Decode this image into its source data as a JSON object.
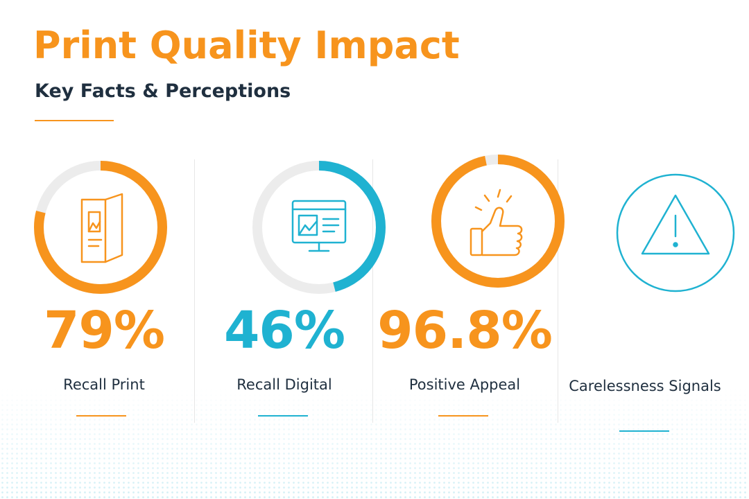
{
  "title": "Print Quality Impact",
  "subtitle": "Key Facts & Perceptions",
  "colors": {
    "orange": "#f7941d",
    "teal": "#1fb2d1",
    "track": "#ececec",
    "text": "#1f2f3f"
  },
  "chart_data": {
    "type": "donut",
    "items": [
      {
        "label": "Recall Print",
        "value_text": "79%",
        "value": 79,
        "color": "#f7941d",
        "icon": "brochure-icon"
      },
      {
        "label": "Recall Digital",
        "value_text": "46%",
        "value": 46,
        "color": "#1fb2d1",
        "icon": "monitor-icon"
      },
      {
        "label": "Positive Appeal",
        "value_text": "96.8%",
        "value": 96.8,
        "color": "#f7941d",
        "icon": "thumbs-up-icon"
      },
      {
        "label": "Carelessness Signals",
        "value_text": "",
        "value": null,
        "color": "#1fb2d1",
        "icon": "warning-icon"
      }
    ]
  }
}
